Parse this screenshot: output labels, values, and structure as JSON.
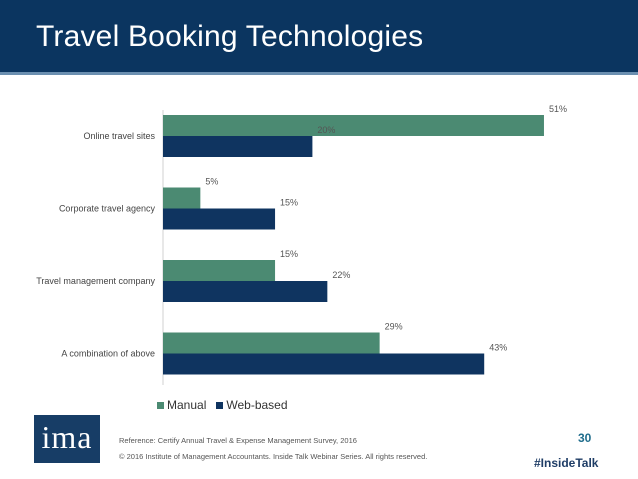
{
  "header": {
    "title": "Travel Booking Technologies"
  },
  "chart_data": {
    "type": "bar",
    "orientation": "horizontal",
    "categories": [
      "Online travel sites",
      "Corporate travel agency",
      "Travel management company",
      "A combination of above"
    ],
    "series": [
      {
        "name": "Manual",
        "values": [
          51,
          5,
          15,
          29
        ],
        "labels": [
          "51%",
          "5%",
          "15%",
          "29%"
        ],
        "color": "#4b8a72"
      },
      {
        "name": "Web-based",
        "values": [
          20,
          15,
          22,
          43
        ],
        "labels": [
          "20%",
          "15%",
          "22%",
          "43%"
        ],
        "color": "#0f3460"
      }
    ],
    "xlim": [
      0,
      60
    ],
    "grid": false,
    "legend": "bottom-left"
  },
  "footer": {
    "logo_text": "ima",
    "reference": "Reference: Certify Annual Travel & Expense Management Survey, 2016",
    "copyright": "© 2016 Institute of Management Accountants. Inside Talk Webinar Series. All rights reserved.",
    "page_number": "30",
    "hashtag": "#InsideTalk"
  }
}
